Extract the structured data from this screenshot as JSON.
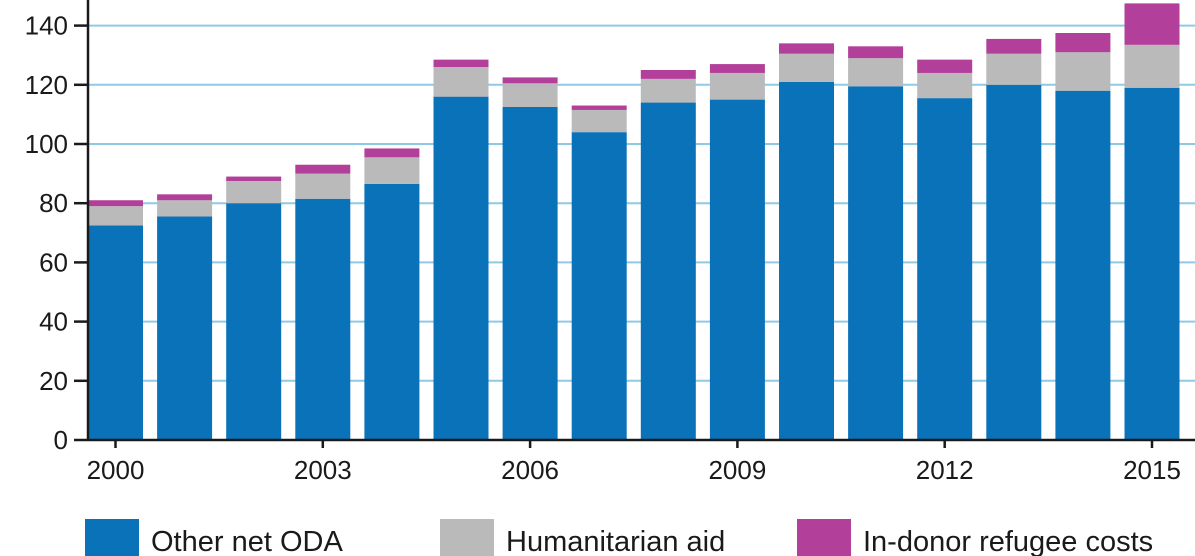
{
  "chart_data": {
    "type": "bar",
    "stacked": true,
    "x": [
      2000,
      2001,
      2002,
      2003,
      2004,
      2005,
      2006,
      2007,
      2008,
      2009,
      2010,
      2011,
      2012,
      2013,
      2014,
      2015
    ],
    "x_tick_labels": [
      "2000",
      "2003",
      "2006",
      "2009",
      "2012",
      "2015"
    ],
    "x_tick_values": [
      2000,
      2003,
      2006,
      2009,
      2012,
      2015
    ],
    "y_tick_labels": [
      "0",
      "20",
      "40",
      "60",
      "80",
      "100",
      "120",
      "140"
    ],
    "y_tick_values": [
      0,
      20,
      40,
      60,
      80,
      100,
      120,
      140
    ],
    "ylim": [
      0,
      147
    ],
    "grid": true,
    "legend_position": "bottom",
    "series": [
      {
        "name": "Other net ODA",
        "color": "#0a72b8",
        "values": [
          72.5,
          75.5,
          80,
          81.5,
          86.5,
          116,
          112.5,
          104,
          114,
          115,
          121,
          119.5,
          115.5,
          120,
          118,
          119
        ]
      },
      {
        "name": "Humanitarian aid",
        "color": "#bababa",
        "values": [
          6.5,
          5.5,
          7.5,
          8.5,
          9,
          10,
          8,
          7.5,
          8,
          9,
          9.5,
          9.5,
          8.5,
          10.5,
          13,
          14.5
        ]
      },
      {
        "name": "In-donor refugee costs",
        "color": "#b2409a",
        "values": [
          2,
          2,
          1.5,
          3,
          3,
          2.5,
          2,
          1.5,
          3,
          3,
          3.5,
          4,
          4.5,
          5,
          6.5,
          14
        ]
      }
    ]
  }
}
